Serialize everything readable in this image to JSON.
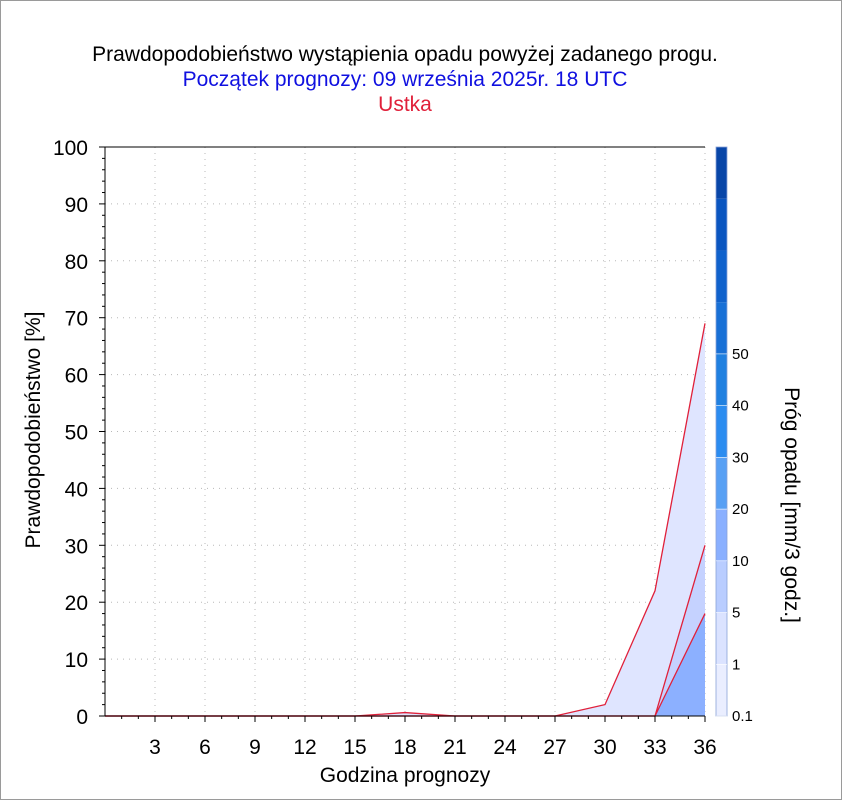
{
  "chart_data": {
    "type": "area",
    "title": "Prawdopodobieństwo wystąpienia opadu powyżej zadanego progu.",
    "subtitle": "Początek prognozy: 09 września 2025r. 18 UTC",
    "location": "Ustka",
    "xlabel": "Godzina prognozy",
    "ylabel": "Prawdopodobieństwo [%]",
    "colorbar_label": "Próg opadu [mm/3 godz.]",
    "xlim": [
      0,
      36
    ],
    "ylim": [
      0,
      100
    ],
    "x_ticks": [
      3,
      6,
      9,
      12,
      15,
      18,
      21,
      24,
      27,
      30,
      33,
      36
    ],
    "y_ticks": [
      0,
      10,
      20,
      30,
      40,
      50,
      60,
      70,
      80,
      90,
      100
    ],
    "grid": "dotted",
    "x": [
      0,
      3,
      6,
      9,
      12,
      15,
      18,
      21,
      24,
      27,
      30,
      33,
      36
    ],
    "series": [
      {
        "threshold": "0.1",
        "color": "#dfe5ff",
        "values": [
          0,
          0,
          0,
          0,
          0,
          0,
          0.6,
          0,
          0,
          0,
          2,
          22,
          69
        ]
      },
      {
        "threshold": "1",
        "color": "#c5d2ff",
        "values": [
          0,
          0,
          0,
          0,
          0,
          0,
          0,
          0,
          0,
          0,
          0,
          0,
          30
        ]
      },
      {
        "threshold": "5",
        "color": "#8cb0ff",
        "values": [
          0,
          0,
          0,
          0,
          0,
          0,
          0,
          0,
          0,
          0,
          0,
          0,
          18
        ]
      }
    ],
    "colorbar": {
      "ticks": [
        "0.1",
        "1",
        "5",
        "10",
        "20",
        "30",
        "40",
        "50"
      ],
      "colors": [
        "#eaeeff",
        "#dbe3ff",
        "#b9cdff",
        "#8ab0ff",
        "#58a0f4",
        "#2b8cf0",
        "#2080e0",
        "#1870d6",
        "#1062cc",
        "#0a55c0",
        "#0846a8"
      ]
    }
  }
}
